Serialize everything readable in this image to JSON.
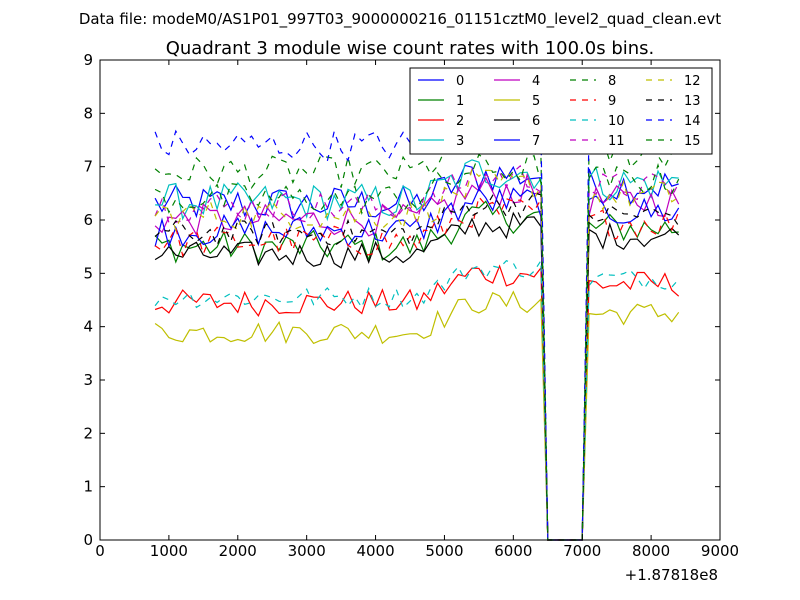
{
  "figure": {
    "suptitle": "Data file: modeM0/AS1P01_997T03_9000000216_01151cztM0_level2_quad_clean.evt"
  },
  "chart_data": {
    "type": "line",
    "title": "Quadrant 3 module wise count rates with 100.0s bins.",
    "xlabel": "",
    "ylabel": "",
    "x_offset_label": "+1.87818e8",
    "xlim": [
      0,
      9000
    ],
    "ylim": [
      0,
      9
    ],
    "xticks": [
      0,
      1000,
      2000,
      3000,
      4000,
      5000,
      6000,
      7000,
      8000,
      9000
    ],
    "yticks": [
      0,
      1,
      2,
      3,
      4,
      5,
      6,
      7,
      8,
      9
    ],
    "grid": false,
    "legend": {
      "position": "top-right",
      "columns": 4
    },
    "x_points": {
      "seg1_start": 800,
      "seg1_end": 6400,
      "gap_start": 6500,
      "gap_end": 7000,
      "seg2_start": 7100,
      "seg2_end": 8400,
      "step": 100
    },
    "series": [
      {
        "name": "0",
        "color": "#0000ff",
        "dash": "solid",
        "level": 6.3,
        "noise": 0.35
      },
      {
        "name": "1",
        "color": "#008000",
        "dash": "solid",
        "level": 5.5,
        "noise": 0.3
      },
      {
        "name": "2",
        "color": "#ff0000",
        "dash": "solid",
        "level": 4.45,
        "noise": 0.25
      },
      {
        "name": "3",
        "color": "#00bfbf",
        "dash": "solid",
        "level": 6.35,
        "noise": 0.35
      },
      {
        "name": "4",
        "color": "#bf00bf",
        "dash": "solid",
        "level": 6.0,
        "noise": 0.3
      },
      {
        "name": "5",
        "color": "#bfbf00",
        "dash": "solid",
        "level": 3.9,
        "noise": 0.22
      },
      {
        "name": "6",
        "color": "#000000",
        "dash": "solid",
        "level": 5.35,
        "noise": 0.25
      },
      {
        "name": "7",
        "color": "#0000ff",
        "dash": "solid",
        "level": 5.8,
        "noise": 0.3
      },
      {
        "name": "8",
        "color": "#008000",
        "dash": "dashed",
        "level": 6.9,
        "noise": 0.3
      },
      {
        "name": "9",
        "color": "#ff0000",
        "dash": "dashed",
        "level": 5.6,
        "noise": 0.3
      },
      {
        "name": "10",
        "color": "#00bfbf",
        "dash": "dashed",
        "level": 4.55,
        "noise": 0.2
      },
      {
        "name": "11",
        "color": "#bf00bf",
        "dash": "dashed",
        "level": 6.25,
        "noise": 0.3
      },
      {
        "name": "12",
        "color": "#bfbf00",
        "dash": "dashed",
        "level": 6.1,
        "noise": 0.3
      },
      {
        "name": "13",
        "color": "#000000",
        "dash": "dashed",
        "level": 5.75,
        "noise": 0.25
      },
      {
        "name": "14",
        "color": "#0000ff",
        "dash": "dashed",
        "level": 7.4,
        "noise": 0.3
      },
      {
        "name": "15",
        "color": "#008000",
        "dash": "dashed",
        "level": 6.4,
        "noise": 0.3
      }
    ]
  }
}
